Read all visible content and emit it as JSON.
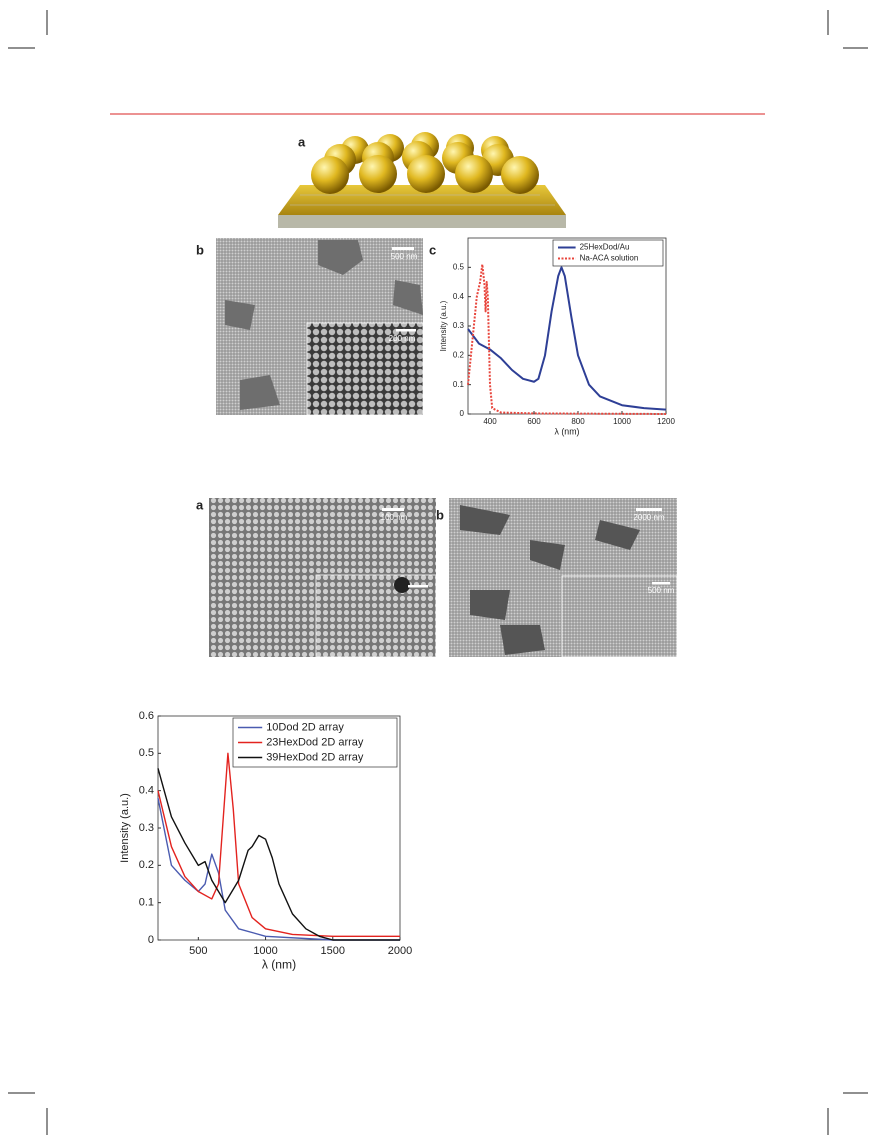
{
  "figures": [
    {
      "panels": [
        {
          "label": "a"
        },
        {
          "label": "b",
          "scale_bar": "500 nm",
          "inset_scale_bar": "200 nm"
        },
        {
          "label": "c"
        }
      ]
    },
    {
      "panels": [
        {
          "label": "a",
          "scale_bar": "100 nm"
        },
        {
          "label": "b",
          "scale_bar": "2000 nm",
          "inset_scale_bar": "500 nm"
        }
      ]
    }
  ],
  "chart_data": [
    {
      "type": "line",
      "xlabel": "λ (nm)",
      "ylabel": "Intensity (a.u.)",
      "xlim": [
        300,
        1200
      ],
      "ylim": [
        0,
        0.6
      ],
      "xticks": [
        400,
        600,
        800,
        1000,
        1200
      ],
      "yticks": [
        0,
        0.1,
        0.2,
        0.3,
        0.4,
        0.5
      ],
      "legend": "upper right",
      "series": [
        {
          "name": "25HexDod/Au",
          "color": "#2e3f96",
          "line_style": "solid",
          "x": [
            300,
            350,
            400,
            450,
            500,
            550,
            600,
            620,
            650,
            680,
            710,
            725,
            740,
            770,
            800,
            850,
            900,
            1000,
            1100,
            1200
          ],
          "values": [
            0.29,
            0.24,
            0.22,
            0.19,
            0.15,
            0.12,
            0.11,
            0.12,
            0.2,
            0.35,
            0.47,
            0.5,
            0.47,
            0.33,
            0.2,
            0.1,
            0.06,
            0.03,
            0.02,
            0.015
          ]
        },
        {
          "name": "Na-ACA solution",
          "color": "#e8453c",
          "line_style": "dotted",
          "x": [
            300,
            320,
            340,
            355,
            365,
            375,
            380,
            385,
            390,
            400,
            410,
            450,
            600,
            1200
          ],
          "values": [
            0.1,
            0.25,
            0.4,
            0.45,
            0.51,
            0.44,
            0.35,
            0.45,
            0.4,
            0.1,
            0.02,
            0.005,
            0.002,
            0
          ]
        }
      ]
    },
    {
      "type": "line",
      "xlabel": "λ (nm)",
      "ylabel": "Intensity (a.u.)",
      "xlim": [
        200,
        2000
      ],
      "ylim": [
        0,
        0.6
      ],
      "xticks": [
        500,
        1000,
        1500,
        2000
      ],
      "yticks": [
        0,
        0.1,
        0.2,
        0.3,
        0.4,
        0.5,
        0.6
      ],
      "legend": "upper right",
      "series": [
        {
          "name": "10Dod 2D array",
          "color": "#4a5bb0",
          "line_style": "solid",
          "x": [
            200,
            300,
            400,
            500,
            550,
            600,
            650,
            700,
            800,
            1000,
            1500,
            2000
          ],
          "values": [
            0.38,
            0.2,
            0.16,
            0.13,
            0.15,
            0.23,
            0.18,
            0.08,
            0.03,
            0.01,
            0,
            0
          ]
        },
        {
          "name": "23HexDod 2D array",
          "color": "#e3231f",
          "line_style": "solid",
          "x": [
            200,
            300,
            400,
            500,
            600,
            650,
            680,
            720,
            760,
            800,
            900,
            1000,
            1200,
            1500,
            2000
          ],
          "values": [
            0.4,
            0.25,
            0.17,
            0.13,
            0.11,
            0.15,
            0.3,
            0.5,
            0.35,
            0.15,
            0.06,
            0.03,
            0.015,
            0.01,
            0.01
          ]
        },
        {
          "name": "39HexDod 2D array",
          "color": "#111111",
          "line_style": "solid",
          "x": [
            200,
            300,
            400,
            500,
            550,
            600,
            700,
            800,
            870,
            900,
            950,
            1000,
            1050,
            1100,
            1200,
            1300,
            1400,
            1500,
            2000
          ],
          "values": [
            0.46,
            0.33,
            0.26,
            0.2,
            0.21,
            0.16,
            0.1,
            0.16,
            0.24,
            0.25,
            0.28,
            0.27,
            0.22,
            0.15,
            0.07,
            0.03,
            0.01,
            0,
            0
          ]
        }
      ]
    }
  ]
}
